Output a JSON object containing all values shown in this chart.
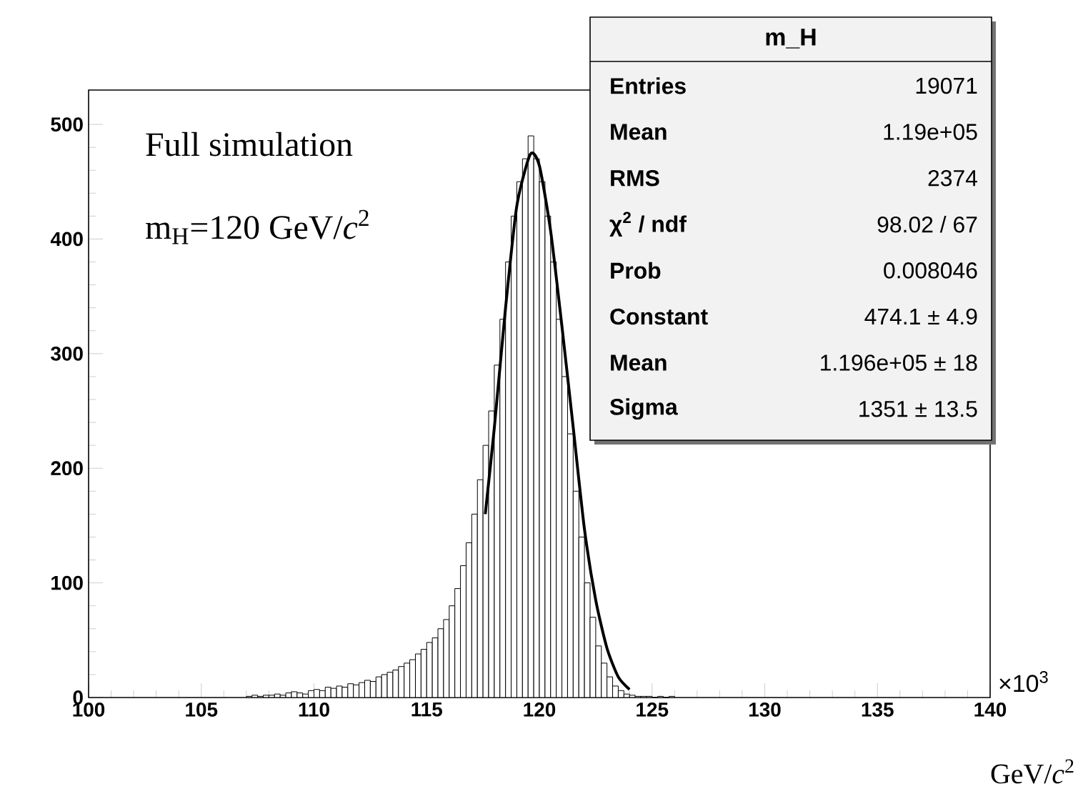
{
  "chart_data": {
    "type": "histogram",
    "xlabel": "GeV/*c*$^{2}$",
    "xlim": [
      100,
      140
    ],
    "xticks": [
      100,
      105,
      110,
      115,
      120,
      125,
      130,
      135,
      140
    ],
    "ylim": [
      0,
      530
    ],
    "yticks": [
      0,
      100,
      200,
      300,
      400,
      500
    ],
    "series": [
      {
        "type": "histogram",
        "color": "#000000",
        "bins": [
          107,
          107.25,
          107.5,
          107.75,
          108,
          108.25,
          108.5,
          108.75,
          109,
          109.25,
          109.5,
          109.75,
          110,
          110.25,
          110.5,
          110.75,
          111,
          111.25,
          111.5,
          111.75,
          112,
          112.25,
          112.5,
          112.75,
          113,
          113.25,
          113.5,
          113.75,
          114,
          114.25,
          114.5,
          114.75,
          115,
          115.25,
          115.5,
          115.75,
          116,
          116.25,
          116.5,
          116.75,
          117,
          117.25,
          117.5,
          117.75,
          118,
          118.25,
          118.5,
          118.75,
          119,
          119.25,
          119.5,
          119.75,
          120,
          120.25,
          120.5,
          120.75,
          121,
          121.25,
          121.5,
          121.75,
          122,
          122.25,
          122.5,
          122.75,
          123,
          123.25,
          123.5,
          123.75,
          124,
          124.25,
          124.5,
          124.75,
          125,
          125.25,
          125.5,
          125.75,
          126
        ],
        "values": [
          1,
          2,
          1,
          2,
          2,
          3,
          2,
          4,
          5,
          4,
          3,
          6,
          7,
          6,
          9,
          8,
          10,
          9,
          12,
          11,
          13,
          15,
          14,
          18,
          20,
          22,
          24,
          27,
          30,
          33,
          38,
          42,
          48,
          52,
          60,
          68,
          80,
          95,
          115,
          135,
          160,
          190,
          220,
          250,
          290,
          330,
          380,
          420,
          450,
          470,
          490,
          470,
          450,
          420,
          380,
          330,
          280,
          230,
          180,
          140,
          100,
          70,
          45,
          30,
          18,
          10,
          6,
          3,
          2,
          1,
          1,
          1,
          0,
          1,
          0,
          1
        ]
      },
      {
        "type": "line",
        "color": "#000000",
        "x": [
          117.6,
          118,
          118.5,
          119,
          119.6,
          120,
          120.5,
          121,
          121.5,
          122,
          122.5,
          123,
          123.5,
          124
        ],
        "values": [
          160,
          235,
          340,
          429,
          474,
          464,
          407,
          324,
          236,
          147,
          85,
          43,
          18,
          7
        ]
      }
    ],
    "annotations": [
      "Full simulation",
      "m$_{H}$=120 GeV/*c*$^{2}$",
      "×10$^{3}$",
      "m_H",
      "Entries",
      "19071",
      "Mean",
      "1.19e+05",
      "RMS",
      "2374",
      "χ$^{2}$ / ndf",
      "98.02 / 67",
      "Prob",
      "0.008046",
      "Constant",
      "474.1 ± 4.9",
      "Mean",
      "1.196e+05 ± 18",
      "Sigma",
      "1351 ± 13.5"
    ]
  }
}
